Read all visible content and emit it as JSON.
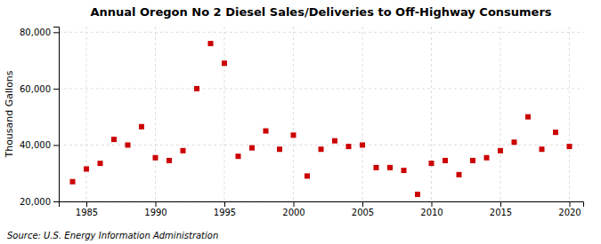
{
  "chart_data": {
    "type": "scatter",
    "title": "Annual Oregon No 2 Diesel Sales/Deliveries to Off-Highway Consumers",
    "ylabel": "Thousand Gallons",
    "annotations": [
      "Source: U.S. Energy Information Administration"
    ],
    "x": [
      1984,
      1985,
      1986,
      1987,
      1988,
      1989,
      1990,
      1991,
      1992,
      1993,
      1994,
      1995,
      1996,
      1997,
      1998,
      1999,
      2000,
      2001,
      2002,
      2003,
      2004,
      2005,
      2006,
      2007,
      2008,
      2009,
      2010,
      2011,
      2012,
      2013,
      2014,
      2015,
      2016,
      2017,
      2018,
      2019,
      2020
    ],
    "values": [
      27000,
      31500,
      33500,
      42000,
      40000,
      46500,
      35500,
      34500,
      38000,
      60000,
      76000,
      69000,
      36000,
      39000,
      45000,
      38500,
      43500,
      29000,
      38500,
      41500,
      39500,
      40000,
      32000,
      32000,
      31000,
      22500,
      33500,
      34500,
      29500,
      34500,
      35500,
      38000,
      41000,
      50000,
      38500,
      44500,
      39500
    ],
    "color": "#cc0000",
    "marker": "square",
    "xlim": [
      1983,
      2021
    ],
    "xticks": [
      1985,
      1990,
      1995,
      2000,
      2005,
      2010,
      2015,
      2020
    ],
    "ylim": [
      20000,
      82000
    ],
    "yticks": [
      {
        "value": 20000,
        "label": "20,000"
      },
      {
        "value": 40000,
        "label": "40,000"
      },
      {
        "value": 60000,
        "label": "60,000"
      },
      {
        "value": 80000,
        "label": "80,000"
      }
    ],
    "grid": true
  }
}
